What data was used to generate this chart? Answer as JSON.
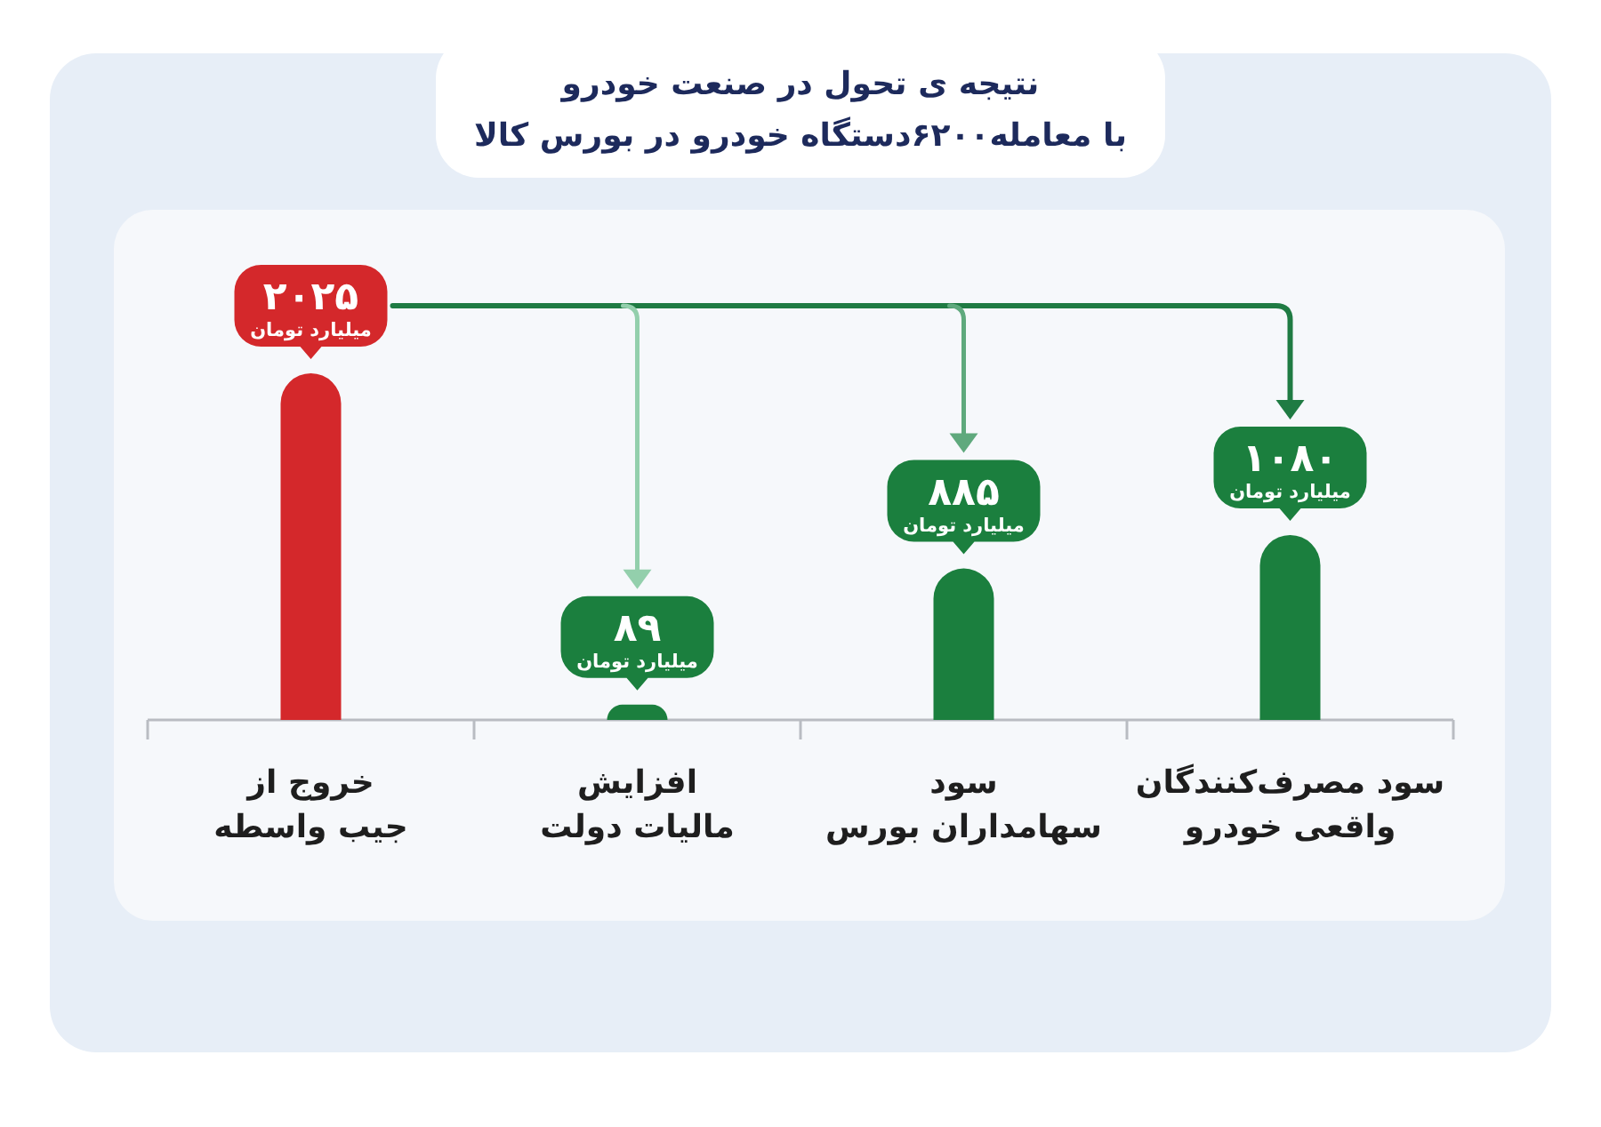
{
  "chart_data": {
    "type": "bar",
    "title": "نتیجه ی تحول در صنعت خودرو",
    "subtitle": "با معامله۶۲۰۰دستگاه خودرو در بورس کالا",
    "categories": [
      "خروج از\nجیب واسطه",
      "افزایش\nمالیات دولت",
      "سود\nسهامداران بورس",
      "سود مصرف‌کنندگان\nواقعی خودرو"
    ],
    "values": [
      2025,
      89,
      885,
      1080
    ],
    "colors": [
      "#d4282b",
      "#1b7f3e",
      "#1b7f3e",
      "#1b7f3e"
    ],
    "value_labels": [
      "۲۰۲۵\nمیلیارد تومان",
      "۸۹\nمیلیارد تومان",
      "۸۸۵\nمیلیارد تومان",
      "۱۰۸۰\nمیلیارد تومان"
    ]
  }
}
